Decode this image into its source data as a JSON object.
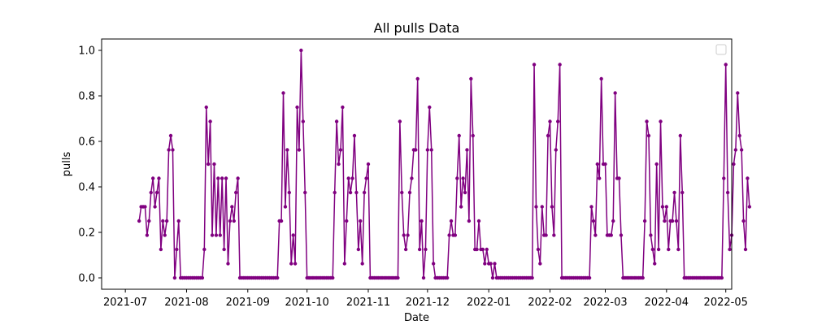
{
  "chart_data": {
    "type": "line",
    "title": "All pulls Data",
    "xlabel": "Date",
    "ylabel": "pulls",
    "xlim": [
      "2021-06-19",
      "2022-05-04"
    ],
    "ylim": [
      -0.05,
      1.05
    ],
    "x_ticks": [
      "2021-07-01",
      "2021-08-01",
      "2021-09-01",
      "2021-10-01",
      "2021-11-01",
      "2021-12-01",
      "2022-01-01",
      "2022-02-01",
      "2022-03-01",
      "2022-04-01",
      "2022-05-01"
    ],
    "x_tick_labels": [
      "2021-07",
      "2021-08",
      "2021-09",
      "2021-10",
      "2021-11",
      "2021-12",
      "2022-01",
      "2022-02",
      "2022-03",
      "2022-04",
      "2022-05"
    ],
    "y_ticks": [
      0.0,
      0.2,
      0.4,
      0.6,
      0.8,
      1.0
    ],
    "y_tick_labels": [
      "0.0",
      "0.2",
      "0.4",
      "0.6",
      "0.8",
      "1.0"
    ],
    "grid": false,
    "legend": "upper-right, empty",
    "series_color": "#800080",
    "series": [
      {
        "x_start": "2021-07-08",
        "x_step_days": 1,
        "values": [
          0.25,
          0.3125,
          0.3125,
          0.3125,
          0.1875,
          0.25,
          0.375,
          0.4375,
          0.3125,
          0.375,
          0.4375,
          0.125,
          0.25,
          0.1875,
          0.25,
          0.5625,
          0.625,
          0.5625,
          0.0,
          0.125,
          0.25,
          0.0,
          0.0,
          0.0,
          0.0,
          0.0,
          0.0,
          0.0,
          0.0,
          0.0,
          0.0,
          0.0,
          0.0,
          0.125,
          0.75,
          0.5,
          0.6875,
          0.1875,
          0.5,
          0.1875,
          0.4375,
          0.1875,
          0.4375,
          0.125,
          0.4375,
          0.0625,
          0.25,
          0.3125,
          0.25,
          0.375,
          0.4375,
          0.0,
          0.0,
          0.0,
          0.0,
          0.0,
          0.0,
          0.0,
          0.0,
          0.0,
          0.0,
          0.0,
          0.0,
          0.0,
          0.0,
          0.0,
          0.0,
          0.0,
          0.0,
          0.0,
          0.0,
          0.25,
          0.25,
          0.8125,
          0.3125,
          0.5625,
          0.375,
          0.0625,
          0.1875,
          0.0625,
          0.75,
          0.5625,
          1.0,
          0.6875,
          0.375,
          0.0,
          0.0,
          0.0,
          0.0,
          0.0,
          0.0,
          0.0,
          0.0,
          0.0,
          0.0,
          0.0,
          0.0,
          0.0,
          0.0,
          0.375,
          0.6875,
          0.5,
          0.5625,
          0.75,
          0.0625,
          0.25,
          0.4375,
          0.375,
          0.4375,
          0.625,
          0.375,
          0.125,
          0.25,
          0.0625,
          0.375,
          0.4375,
          0.5,
          0.0,
          0.0,
          0.0,
          0.0,
          0.0,
          0.0,
          0.0,
          0.0,
          0.0,
          0.0,
          0.0,
          0.0,
          0.0,
          0.0,
          0.0,
          0.6875,
          0.375,
          0.1875,
          0.125,
          0.1875,
          0.375,
          0.4375,
          0.5625,
          0.5625,
          0.875,
          0.125,
          0.25,
          0.0,
          0.125,
          0.5625,
          0.75,
          0.5625,
          0.0625,
          0.0,
          0.0,
          0.0,
          0.0,
          0.0,
          0.0,
          0.0,
          0.1875,
          0.25,
          0.1875,
          0.1875,
          0.4375,
          0.625,
          0.3125,
          0.4375,
          0.375,
          0.5625,
          0.25,
          0.875,
          0.625,
          0.125,
          0.125,
          0.25,
          0.125,
          0.125,
          0.0625,
          0.125,
          0.0625,
          0.0625,
          0.0,
          0.0625,
          0.0,
          0.0,
          0.0,
          0.0,
          0.0,
          0.0,
          0.0,
          0.0,
          0.0,
          0.0,
          0.0,
          0.0,
          0.0,
          0.0,
          0.0,
          0.0,
          0.0,
          0.0,
          0.0,
          0.9375,
          0.3125,
          0.125,
          0.0625,
          0.3125,
          0.1875,
          0.1875,
          0.625,
          0.6875,
          0.3125,
          0.1875,
          0.5625,
          0.6875,
          0.9375,
          0.0,
          0.0,
          0.0,
          0.0,
          0.0,
          0.0,
          0.0,
          0.0,
          0.0,
          0.0,
          0.0,
          0.0,
          0.0,
          0.0,
          0.0,
          0.3125,
          0.25,
          0.1875,
          0.5,
          0.4375,
          0.875,
          0.5,
          0.5,
          0.1875,
          0.1875,
          0.1875,
          0.25,
          0.8125,
          0.4375,
          0.4375,
          0.1875,
          0.0,
          0.0,
          0.0,
          0.0,
          0.0,
          0.0,
          0.0,
          0.0,
          0.0,
          0.0,
          0.0,
          0.25,
          0.6875,
          0.625,
          0.1875,
          0.125,
          0.0625,
          0.5,
          0.125,
          0.6875,
          0.3125,
          0.25,
          0.3125,
          0.125,
          0.25,
          0.25,
          0.375,
          0.25,
          0.125,
          0.625,
          0.375,
          0.0,
          0.0,
          0.0,
          0.0,
          0.0,
          0.0,
          0.0,
          0.0,
          0.0,
          0.0,
          0.0,
          0.0,
          0.0,
          0.0,
          0.0,
          0.0,
          0.0,
          0.0,
          0.0,
          0.0,
          0.4375,
          0.9375,
          0.375,
          0.125,
          0.1875,
          0.5,
          0.5625,
          0.8125,
          0.625,
          0.5625,
          0.25,
          0.125,
          0.4375,
          0.3125
        ]
      }
    ]
  }
}
